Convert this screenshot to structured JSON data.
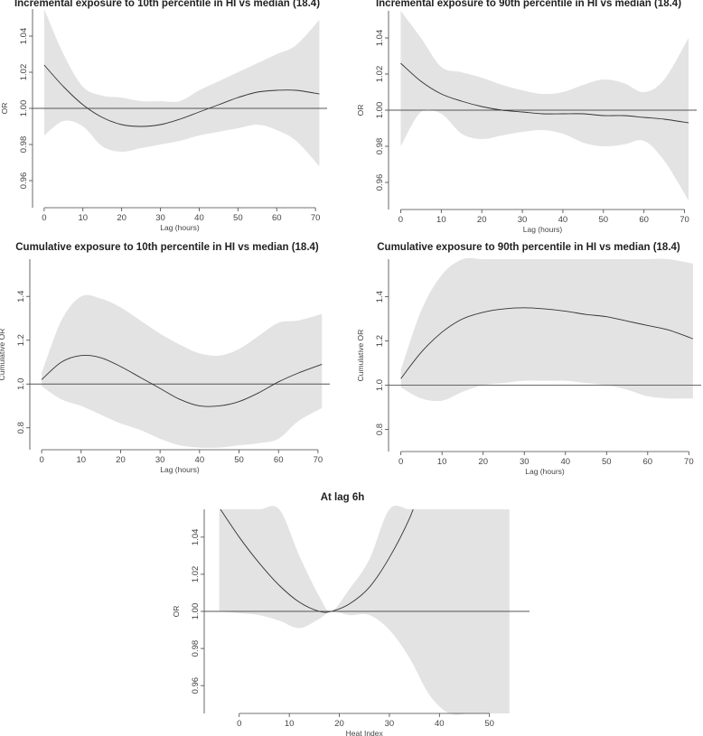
{
  "chart_data": [
    {
      "type": "line",
      "title": "Incremental exposure to 10th percentile in HI vs median (18.4)",
      "xlabel": "Lag (hours)",
      "ylabel": "OR",
      "xlim": [
        -3,
        73
      ],
      "ylim": [
        0.945,
        1.055
      ],
      "xticks": [
        0,
        10,
        20,
        30,
        40,
        50,
        60,
        70
      ],
      "yticks": [
        0.96,
        0.98,
        1.0,
        1.02,
        1.04
      ],
      "ytick_labels": [
        "0.96",
        "0.98",
        "1.00",
        "1.02",
        "1.04"
      ],
      "reference_y": 1.0,
      "grid": false,
      "x": [
        0,
        5,
        10,
        15,
        20,
        25,
        30,
        35,
        40,
        45,
        50,
        55,
        60,
        65,
        71
      ],
      "series": [
        {
          "values": [
            1.024,
            1.012,
            1.002,
            0.995,
            0.991,
            0.99,
            0.991,
            0.994,
            0.998,
            1.002,
            1.006,
            1.009,
            1.01,
            1.01,
            1.008
          ]
        }
      ],
      "ci_lower": [
        0.985,
        0.993,
        0.99,
        0.979,
        0.976,
        0.978,
        0.98,
        0.982,
        0.985,
        0.987,
        0.989,
        0.991,
        0.988,
        0.982,
        0.968
      ],
      "ci_upper": [
        1.063,
        1.03,
        1.012,
        1.007,
        1.006,
        1.004,
        1.004,
        1.004,
        1.01,
        1.015,
        1.02,
        1.025,
        1.03,
        1.035,
        1.049
      ]
    },
    {
      "type": "line",
      "title": "Incremental exposure to 90th percentile in HI vs median (18.4)",
      "xlabel": "Lag (hours)",
      "ylabel": "OR",
      "xlim": [
        -3,
        73
      ],
      "ylim": [
        0.945,
        1.055
      ],
      "xticks": [
        0,
        10,
        20,
        30,
        40,
        50,
        60,
        70
      ],
      "yticks": [
        0.96,
        0.98,
        1.0,
        1.02,
        1.04
      ],
      "ytick_labels": [
        "0.96",
        "0.98",
        "1.00",
        "1.02",
        "1.04"
      ],
      "reference_y": 1.0,
      "grid": false,
      "x": [
        0,
        5,
        10,
        15,
        20,
        25,
        30,
        35,
        40,
        45,
        50,
        55,
        60,
        65,
        71
      ],
      "series": [
        {
          "values": [
            1.026,
            1.016,
            1.009,
            1.005,
            1.002,
            1.0,
            0.999,
            0.998,
            0.998,
            0.998,
            0.997,
            0.997,
            0.996,
            0.995,
            0.993
          ]
        }
      ],
      "ci_lower": [
        0.98,
        0.999,
        0.998,
        0.987,
        0.984,
        0.986,
        0.988,
        0.989,
        0.987,
        0.982,
        0.98,
        0.981,
        0.983,
        0.972,
        0.95
      ],
      "ci_upper": [
        1.07,
        1.04,
        1.024,
        1.021,
        1.018,
        1.014,
        1.011,
        1.009,
        1.01,
        1.014,
        1.017,
        1.015,
        1.01,
        1.017,
        1.04
      ]
    },
    {
      "type": "line",
      "title": "Cumulative exposure to 10th percentile in HI vs median (18.4)",
      "xlabel": "Lag (hours)",
      "ylabel": "Cumulative OR",
      "xlim": [
        -3,
        73
      ],
      "ylim": [
        0.7,
        1.57
      ],
      "xticks": [
        0,
        10,
        20,
        30,
        40,
        50,
        60,
        70
      ],
      "yticks": [
        0.8,
        1.0,
        1.2,
        1.4
      ],
      "ytick_labels": [
        "0.8",
        "1.0",
        "1.2",
        "1.4"
      ],
      "reference_y": 1.0,
      "grid": false,
      "x": [
        0,
        5,
        10,
        15,
        20,
        25,
        30,
        35,
        40,
        45,
        50,
        55,
        60,
        65,
        71
      ],
      "series": [
        {
          "values": [
            1.02,
            1.1,
            1.13,
            1.12,
            1.08,
            1.03,
            0.98,
            0.93,
            0.9,
            0.9,
            0.92,
            0.96,
            1.01,
            1.05,
            1.09
          ]
        }
      ],
      "ci_lower": [
        0.99,
        0.93,
        0.9,
        0.86,
        0.82,
        0.79,
        0.75,
        0.72,
        0.71,
        0.71,
        0.72,
        0.73,
        0.75,
        0.83,
        0.89
      ],
      "ci_upper": [
        1.05,
        1.29,
        1.4,
        1.39,
        1.35,
        1.29,
        1.23,
        1.18,
        1.14,
        1.13,
        1.16,
        1.22,
        1.28,
        1.29,
        1.32
      ]
    },
    {
      "type": "line",
      "title": "Cumulative exposure to 90th percentile in HI vs median (18.4)",
      "xlabel": "Lag (hours)",
      "ylabel": "Cumulative OR",
      "xlim": [
        -3,
        73
      ],
      "ylim": [
        0.7,
        1.57
      ],
      "xticks": [
        0,
        10,
        20,
        30,
        40,
        50,
        60,
        70
      ],
      "yticks": [
        0.8,
        1.0,
        1.2,
        1.4
      ],
      "ytick_labels": [
        "0.8",
        "1.0",
        "1.2",
        "1.4"
      ],
      "reference_y": 1.0,
      "grid": false,
      "x": [
        0,
        5,
        10,
        15,
        20,
        25,
        30,
        35,
        40,
        45,
        50,
        55,
        60,
        65,
        71
      ],
      "series": [
        {
          "values": [
            1.03,
            1.15,
            1.24,
            1.3,
            1.33,
            1.345,
            1.35,
            1.345,
            1.335,
            1.32,
            1.31,
            1.29,
            1.27,
            1.25,
            1.21
          ]
        }
      ],
      "ci_lower": [
        0.99,
        0.94,
        0.93,
        0.97,
        1.0,
        1.01,
        1.02,
        1.02,
        1.02,
        1.01,
        1.0,
        0.98,
        0.95,
        0.94,
        0.94
      ],
      "ci_upper": [
        1.07,
        1.34,
        1.5,
        1.57,
        1.57,
        1.57,
        1.57,
        1.57,
        1.57,
        1.57,
        1.57,
        1.57,
        1.57,
        1.57,
        1.55
      ]
    },
    {
      "type": "line",
      "title": "At lag 6h",
      "xlabel": "Heat Index",
      "ylabel": "OR",
      "xlim": [
        -7,
        58
      ],
      "ylim": [
        0.945,
        1.055
      ],
      "xticks": [
        0,
        10,
        20,
        30,
        40,
        50
      ],
      "yticks": [
        0.96,
        0.98,
        1.0,
        1.02,
        1.04
      ],
      "ytick_labels": [
        "0.96",
        "0.98",
        "1.00",
        "1.02",
        "1.04"
      ],
      "reference_y": 1.0,
      "grid": false,
      "x": [
        -4,
        0,
        4,
        8,
        12,
        16,
        18.4,
        22,
        26,
        30,
        34,
        36
      ],
      "series": [
        {
          "values": [
            1.056,
            1.04,
            1.026,
            1.014,
            1.005,
            1.0,
            1.0,
            1.004,
            1.013,
            1.029,
            1.05,
            1.065
          ]
        }
      ],
      "ci_lower": [
        1.0,
        0.999,
        0.998,
        0.995,
        0.991,
        0.996,
        1.0,
        0.998,
        0.998,
        0.99,
        0.97,
        0.945
      ],
      "ci_upper": [
        1.055,
        1.055,
        1.055,
        1.055,
        1.03,
        1.008,
        1.0,
        1.012,
        1.028,
        1.055,
        1.055,
        1.055
      ],
      "ci_band_x": [
        -4,
        0,
        4,
        8,
        12,
        16,
        18.4,
        22,
        26,
        30,
        34,
        38,
        42,
        46,
        50,
        54
      ],
      "ci_band_lower": [
        1.0,
        0.999,
        0.998,
        0.995,
        0.991,
        0.996,
        1.0,
        0.998,
        0.998,
        0.99,
        0.975,
        0.955,
        0.945,
        0.945,
        0.945,
        0.945
      ],
      "ci_band_upper": [
        1.055,
        1.055,
        1.055,
        1.055,
        1.03,
        1.008,
        1.0,
        1.012,
        1.028,
        1.055,
        1.055,
        1.055,
        1.055,
        1.055,
        1.055,
        1.055
      ]
    }
  ]
}
